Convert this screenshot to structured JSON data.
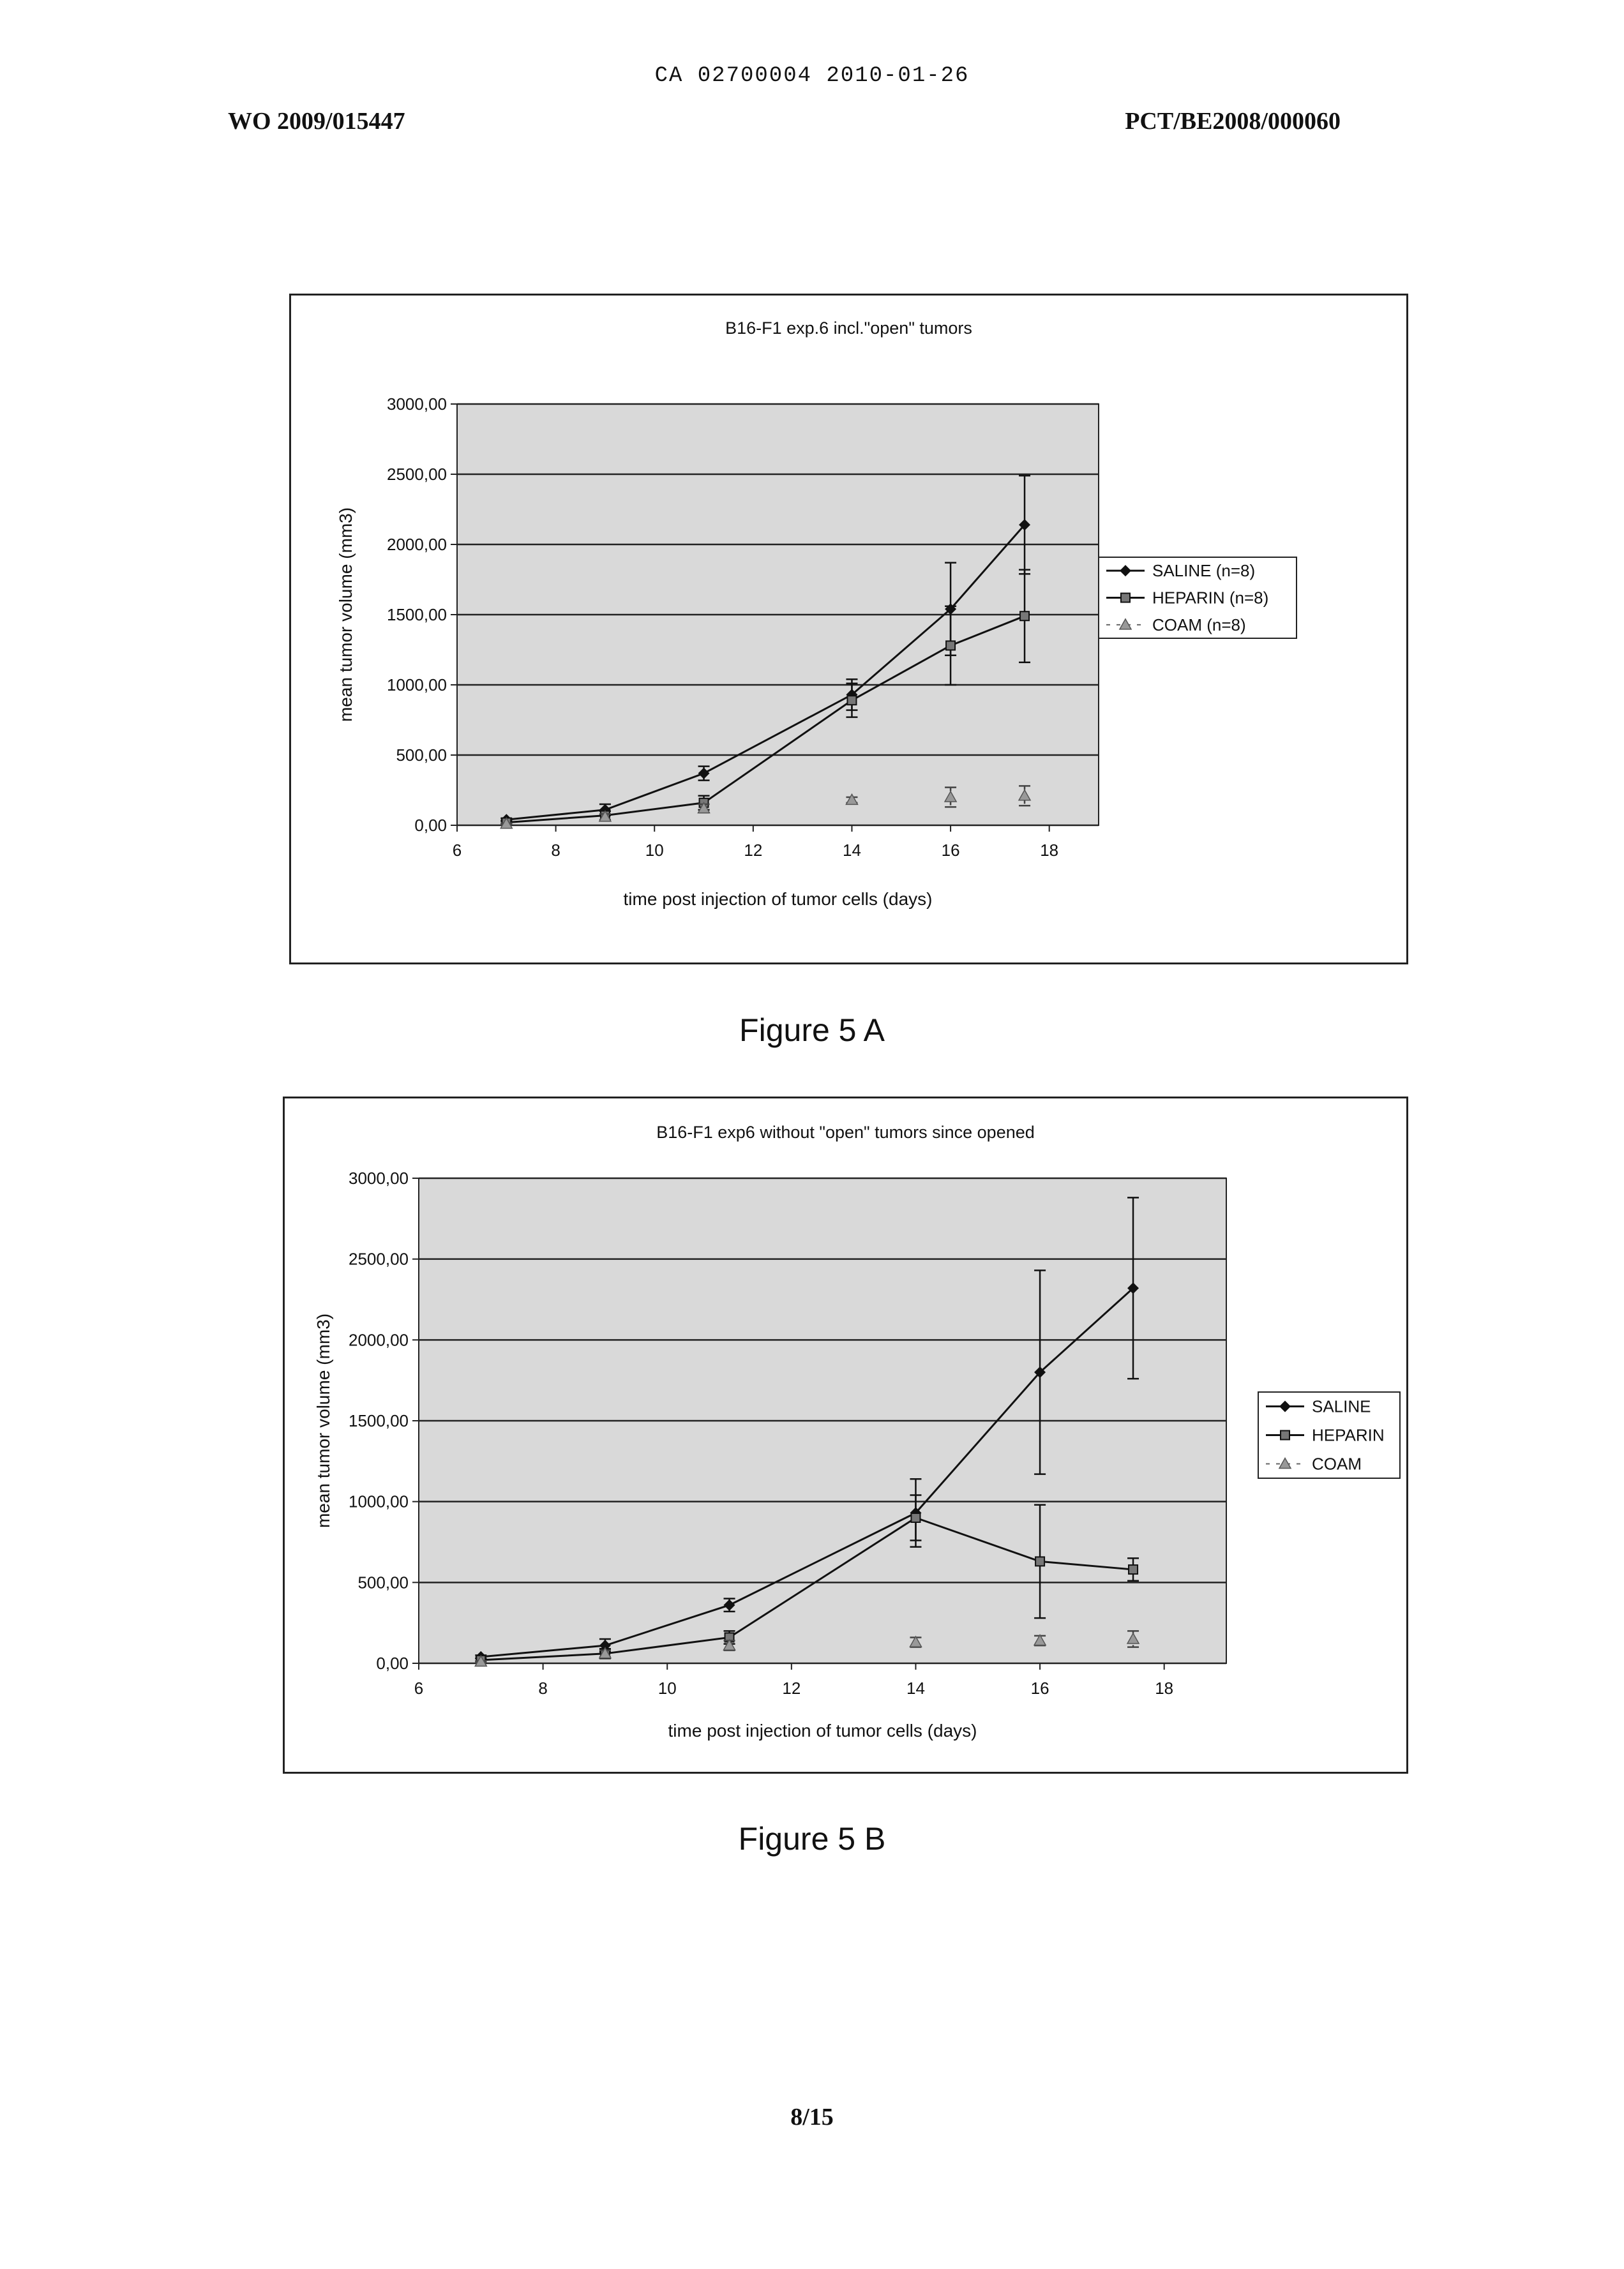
{
  "header": {
    "center_code": "CA 02700004 2010-01-26",
    "left_code": "WO 2009/015447",
    "right_code": "PCT/BE2008/000060"
  },
  "figures": [
    {
      "caption": "Figure 5 A"
    },
    {
      "caption": "Figure 5 B"
    }
  ],
  "page_number": "8/15",
  "colors": {
    "line": "#111111",
    "grid": "#222222",
    "plot_bg": "#d9d9d9"
  },
  "chart_data": [
    {
      "type": "line",
      "title": "B16-F1 exp.6 incl.\"open\" tumors",
      "xlabel": "time post injection of tumor cells (days)",
      "ylabel": "mean tumor volume (mm3)",
      "xlim": [
        6,
        19
      ],
      "ylim": [
        0,
        3000
      ],
      "xticks": [
        "6",
        "8",
        "10",
        "12",
        "14",
        "16",
        "18"
      ],
      "yticks": [
        "0,00",
        "500,00",
        "1000,00",
        "1500,00",
        "2000,00",
        "2500,00",
        "3000,00"
      ],
      "grid": "horizontal",
      "legend_position": "right",
      "series": [
        {
          "name": "SALINE (n=8)",
          "marker": "diamond",
          "x": [
            7,
            9,
            11,
            14,
            16,
            17.5
          ],
          "y": [
            40,
            110,
            370,
            930,
            1540,
            2140
          ],
          "err": [
            10,
            40,
            50,
            110,
            330,
            350
          ]
        },
        {
          "name": "HEPARIN (n=8)",
          "marker": "square",
          "x": [
            7,
            9,
            11,
            14,
            16,
            17.5
          ],
          "y": [
            20,
            70,
            160,
            890,
            1280,
            1490
          ],
          "err": [
            10,
            30,
            50,
            120,
            280,
            330
          ]
        },
        {
          "name": "COAM (n=8)",
          "marker": "triangle",
          "x": [
            7,
            9,
            11,
            14,
            16,
            17.5
          ],
          "y": [
            10,
            60,
            120,
            180,
            200,
            210
          ],
          "err": [
            5,
            20,
            30,
            20,
            70,
            70
          ]
        }
      ]
    },
    {
      "type": "line",
      "title": "B16-F1 exp6 without \"open\" tumors since opened",
      "xlabel": "time post injection of tumor cells (days)",
      "ylabel": "mean tumor volume (mm3)",
      "xlim": [
        6,
        19
      ],
      "ylim": [
        0,
        3000
      ],
      "xticks": [
        "6",
        "8",
        "10",
        "12",
        "14",
        "16",
        "18"
      ],
      "yticks": [
        "0,00",
        "500,00",
        "1000,00",
        "1500,00",
        "2000,00",
        "2500,00",
        "3000,00"
      ],
      "grid": "horizontal",
      "legend_position": "right",
      "series": [
        {
          "name": "SALINE",
          "marker": "diamond",
          "x": [
            7,
            9,
            11,
            14,
            16,
            17.5
          ],
          "y": [
            40,
            110,
            360,
            930,
            1800,
            2320
          ],
          "err": [
            10,
            40,
            40,
            210,
            630,
            560
          ]
        },
        {
          "name": "HEPARIN",
          "marker": "square",
          "x": [
            7,
            9,
            11,
            14,
            16,
            17.5
          ],
          "y": [
            20,
            60,
            160,
            900,
            630,
            580
          ],
          "err": [
            10,
            30,
            40,
            140,
            350,
            70
          ]
        },
        {
          "name": "COAM",
          "marker": "triangle",
          "x": [
            7,
            9,
            11,
            14,
            16,
            17.5
          ],
          "y": [
            10,
            60,
            110,
            130,
            140,
            150
          ],
          "err": [
            5,
            20,
            30,
            30,
            30,
            50
          ]
        }
      ]
    }
  ]
}
